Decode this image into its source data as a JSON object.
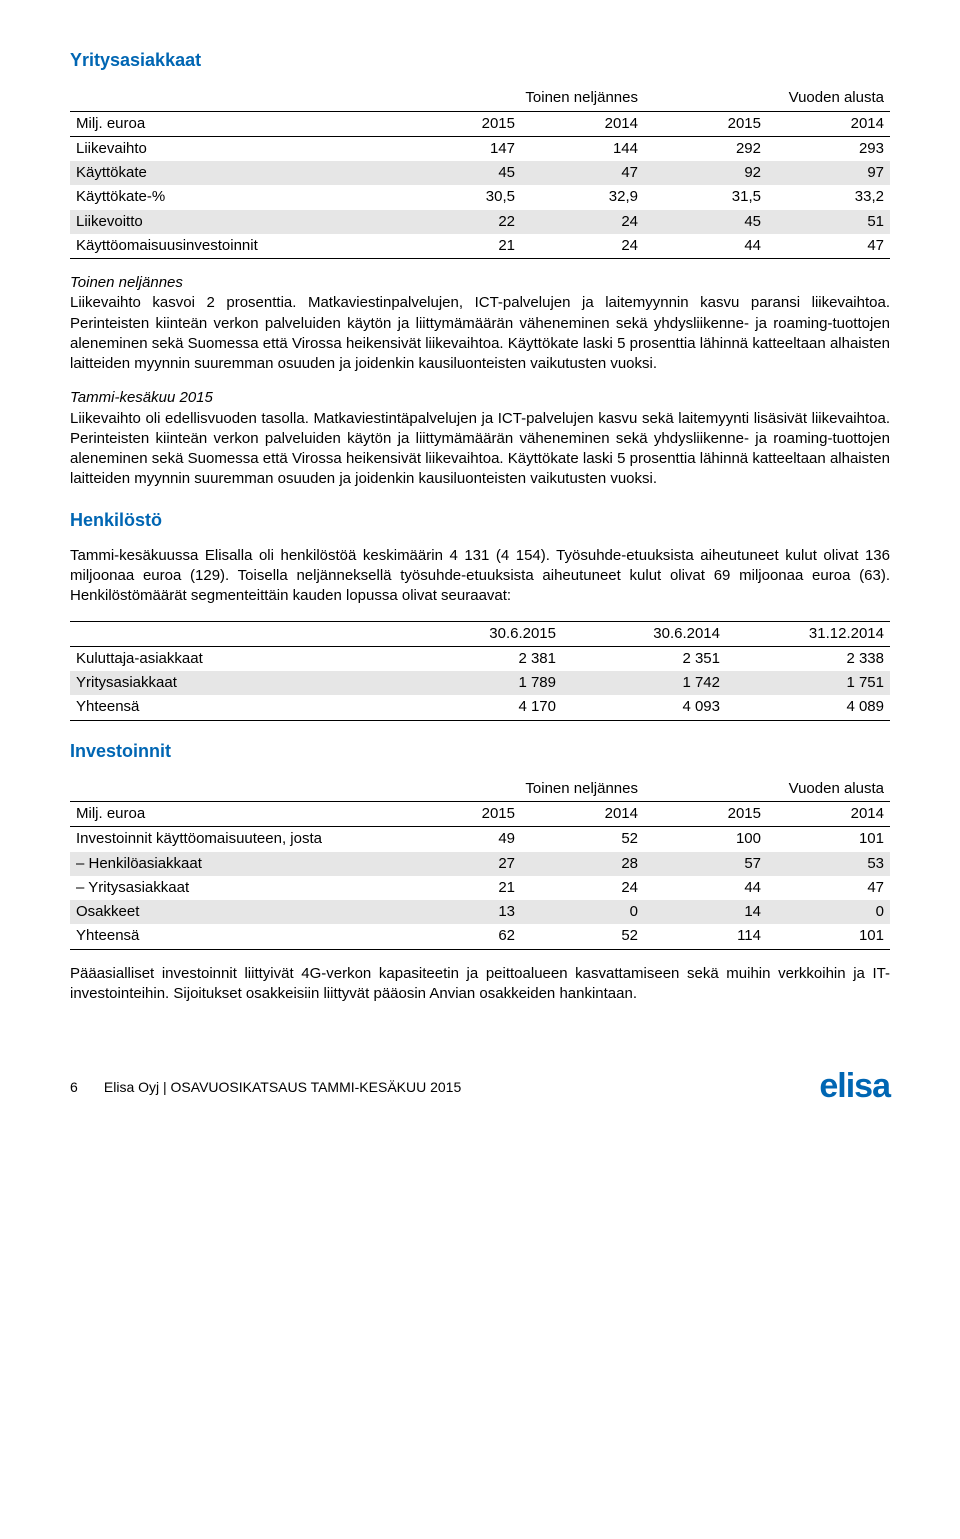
{
  "colors": {
    "heading": "#0066b3",
    "grey_row": "#e6e6e6",
    "text": "#000000",
    "background": "#ffffff",
    "logo": "#0066b3"
  },
  "section1": {
    "title": "Yritysasiakkaat",
    "super_headers": [
      "Toinen neljännes",
      "Vuoden alusta"
    ],
    "col_headers": [
      "Milj. euroa",
      "2015",
      "2014",
      "2015",
      "2014"
    ],
    "rows": [
      {
        "label": "Liikevaihto",
        "vals": [
          "147",
          "144",
          "292",
          "293"
        ],
        "grey": false
      },
      {
        "label": "Käyttökate",
        "vals": [
          "45",
          "47",
          "92",
          "97"
        ],
        "grey": true
      },
      {
        "label": "Käyttökate-%",
        "vals": [
          "30,5",
          "32,9",
          "31,5",
          "33,2"
        ],
        "grey": false
      },
      {
        "label": "Liikevoitto",
        "vals": [
          "22",
          "24",
          "45",
          "51"
        ],
        "grey": true
      },
      {
        "label": "Käyttöomaisuusinvestoinnit",
        "vals": [
          "21",
          "24",
          "44",
          "47"
        ],
        "grey": false
      }
    ],
    "para1_lead": "Toinen neljännes",
    "para1": "Liikevaihto kasvoi 2 prosenttia. Matkaviestinpalvelujen, ICT-palvelujen ja laitemyynnin kasvu paransi liikevaihtoa. Perinteisten kiinteän verkon palveluiden käytön ja liittymämäärän väheneminen sekä yhdysliikenne- ja roaming-tuottojen aleneminen sekä Suomessa että Virossa heikensivät liikevaihtoa. Käyttökate laski 5 prosenttia lähinnä katteeltaan alhaisten laitteiden myynnin suuremman osuuden ja joidenkin kausiluonteisten vaikutusten vuoksi.",
    "para2_lead": "Tammi-kesäkuu 2015",
    "para2": "Liikevaihto oli edellisvuoden tasolla. Matkaviestintäpalvelujen ja ICT-palvelujen kasvu sekä laitemyynti lisäsivät liikevaihtoa. Perinteisten kiinteän verkon palveluiden käytön ja liittymämäärän väheneminen sekä yhdysliikenne- ja roaming-tuottojen aleneminen sekä Suomessa että Virossa heikensivät liikevaihtoa. Käyttökate laski 5 prosenttia lähinnä katteeltaan alhaisten laitteiden myynnin suuremman osuuden ja joidenkin kausiluonteisten vaikutusten vuoksi."
  },
  "section2": {
    "title": "Henkilöstö",
    "intro": "Tammi-kesäkuussa Elisalla oli henkilöstöä keskimäärin 4 131 (4 154). Työsuhde-etuuksista aiheutuneet kulut olivat 136 miljoonaa euroa (129). Toisella neljänneksellä työsuhde-etuuksista aiheutuneet kulut olivat 69 miljoonaa euroa (63). Henkilöstömäärät segmenteittäin kauden lopussa olivat seuraavat:",
    "col_headers": [
      "",
      "30.6.2015",
      "30.6.2014",
      "31.12.2014"
    ],
    "rows": [
      {
        "label": "Kuluttaja-asiakkaat",
        "vals": [
          "2 381",
          "2 351",
          "2 338"
        ],
        "grey": false
      },
      {
        "label": "Yritysasiakkaat",
        "vals": [
          "1 789",
          "1 742",
          "1 751"
        ],
        "grey": true
      },
      {
        "label": "Yhteensä",
        "vals": [
          "4 170",
          "4 093",
          "4 089"
        ],
        "grey": false
      }
    ]
  },
  "section3": {
    "title": "Investoinnit",
    "super_headers": [
      "Toinen neljännes",
      "Vuoden alusta"
    ],
    "col_headers": [
      "Milj. euroa",
      "2015",
      "2014",
      "2015",
      "2014"
    ],
    "rows": [
      {
        "label": "Investoinnit käyttöomaisuuteen, josta",
        "vals": [
          "49",
          "52",
          "100",
          "101"
        ],
        "grey": false
      },
      {
        "label": "– Henkilöasiakkaat",
        "vals": [
          "27",
          "28",
          "57",
          "53"
        ],
        "grey": true
      },
      {
        "label": "– Yritysasiakkaat",
        "vals": [
          "21",
          "24",
          "44",
          "47"
        ],
        "grey": false
      },
      {
        "label": "Osakkeet",
        "vals": [
          "13",
          "0",
          "14",
          "0"
        ],
        "grey": true
      },
      {
        "label": "Yhteensä",
        "vals": [
          "62",
          "52",
          "114",
          "101"
        ],
        "grey": false
      }
    ],
    "outro": "Pääasialliset investoinnit liittyivät 4G-verkon kapasiteetin ja peittoalueen kasvattamiseen sekä muihin verkkoihin ja IT-investointeihin. Sijoitukset osakkeisiin liittyvät pääosin Anvian osakkeiden hankintaan."
  },
  "footer": {
    "page": "6",
    "text": "Elisa Oyj | OSAVUOSIKATSAUS TAMMI-KESÄKUU 2015",
    "logo": "elisa"
  }
}
